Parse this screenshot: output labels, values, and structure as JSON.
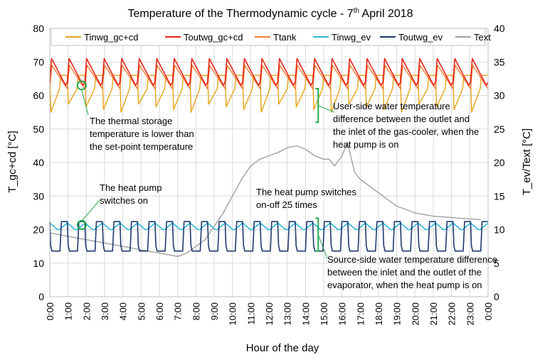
{
  "chart_data": {
    "type": "line",
    "title": {
      "main": "Temperature of the Thermodynamic cycle - 7",
      "sup": "th",
      "tail": " April 2018"
    },
    "xlabel": "Hour of the day",
    "ylabel_left": "T_gc+cd [°C]",
    "ylabel_right": "T_ev/Text [°C]",
    "ylim_left": [
      0,
      80
    ],
    "ylim_right": [
      0,
      40
    ],
    "yticks_left": [
      "0",
      "10",
      "20",
      "30",
      "40",
      "50",
      "60",
      "70",
      "80"
    ],
    "yticks_right": [
      "0",
      "5",
      "10",
      "15",
      "20",
      "25",
      "30",
      "35",
      "40"
    ],
    "xlim": [
      0,
      24
    ],
    "xticks": [
      "0:00",
      "1:00",
      "2:00",
      "3:00",
      "4:00",
      "5:00",
      "6:00",
      "7:00",
      "8:00",
      "9:00",
      "10:00",
      "11:00",
      "12:00",
      "13:00",
      "14:00",
      "15:00",
      "16:00",
      "17:00",
      "18:00",
      "19:00",
      "20:00",
      "21:00",
      "22:00",
      "23:00",
      "0:00"
    ],
    "grid": true,
    "legend": [
      {
        "name": "Tinwg_gc+cd",
        "color": "#E8A317"
      },
      {
        "name": "Toutwg_gc+cd",
        "color": "#E8231A"
      },
      {
        "name": "Ttank",
        "color": "#ED7D31"
      },
      {
        "name": "Tinwg_ev",
        "color": "#2EB8D8"
      },
      {
        "name": "Toutwg_ev",
        "color": "#1F3A6E"
      },
      {
        "name": "Text",
        "color": "#A0A0A0"
      }
    ],
    "series_params": {
      "cycles_per_day": 25,
      "Toutwg_gc_cd": {
        "axis": "left",
        "peak": 71,
        "trough": 63
      },
      "Ttank": {
        "axis": "left",
        "peak": 69,
        "trough": 62
      },
      "Tinwg_gc_cd": {
        "axis": "left",
        "on_low": 55,
        "on_high": 62,
        "off_value": 66
      },
      "Tinwg_ev": {
        "axis": "right",
        "high": 11,
        "low": 10
      },
      "Toutwg_ev": {
        "axis": "right",
        "on_value": 6.8,
        "off_value": 11.2
      },
      "Text": {
        "axis": "right",
        "x": [
          0,
          1,
          2,
          3,
          4,
          5,
          6,
          7,
          7.5,
          8,
          8.5,
          9,
          9.5,
          10,
          10.5,
          11,
          11.5,
          12,
          12.5,
          13,
          13.5,
          14,
          14.5,
          15,
          15.3,
          15.6,
          16,
          16.3,
          16.7,
          17,
          17.5,
          18,
          18.5,
          19,
          20,
          21,
          22,
          23,
          23.6
        ],
        "y": [
          9.5,
          9,
          8.5,
          8,
          7.5,
          7,
          6.5,
          6,
          6.5,
          7.5,
          8.5,
          10.5,
          12.5,
          15,
          17.5,
          19.5,
          20.5,
          21,
          21.5,
          22.2,
          22.5,
          22,
          21,
          20.5,
          20.5,
          19.5,
          21,
          23,
          18.5,
          17.5,
          16.5,
          15.5,
          14.5,
          13.5,
          12.5,
          12,
          11.8,
          11.6,
          11.5
        ]
      }
    },
    "annotations": [
      {
        "id": "storage",
        "lines": [
          "The thermal storage",
          "temperature is lower than",
          "the set-point temperature"
        ]
      },
      {
        "id": "userside",
        "lines": [
          "User-side water temperature",
          "difference between the outlet and",
          "the inlet of the gas-cooler, when the",
          "heat pump is on"
        ]
      },
      {
        "id": "switchon",
        "lines": [
          "The heat pump",
          "switches on"
        ]
      },
      {
        "id": "onoff",
        "lines": [
          "The heat pump switches",
          "on-off 25 times"
        ]
      },
      {
        "id": "sourceside",
        "lines": [
          "Source-side water temperature difference",
          "between the inlet and the outlet of the",
          "evaporator, when the heat pump is on"
        ]
      }
    ]
  }
}
